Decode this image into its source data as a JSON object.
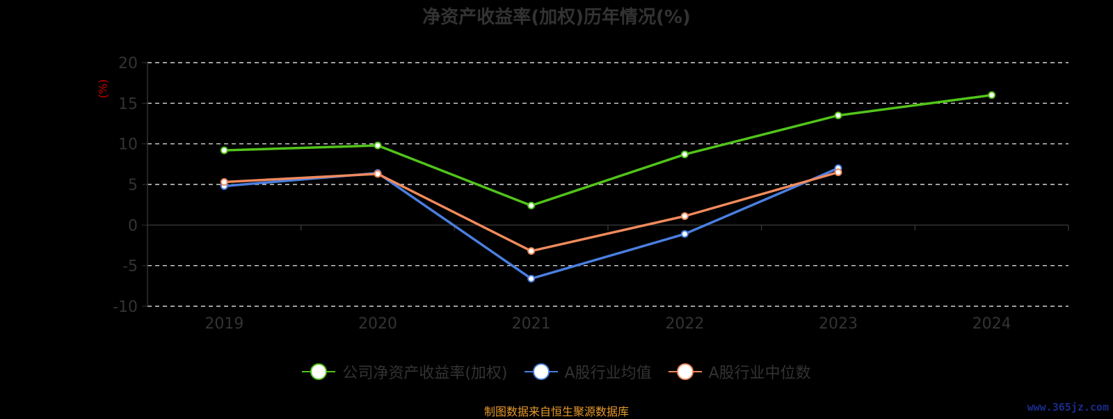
{
  "chart_data": {
    "type": "line",
    "title": "净资产收益率(加权)历年情况(%)",
    "ylabel": "(%)",
    "xlabel": "",
    "categories": [
      "2019",
      "2020",
      "2021",
      "2022",
      "2023",
      "2024"
    ],
    "ylim": [
      -10,
      20
    ],
    "yticks": [
      20,
      15,
      10,
      5,
      0,
      -5,
      -10
    ],
    "grid": true,
    "legend_position": "bottom",
    "series": [
      {
        "name": "公司净资产收益率(加权)",
        "color": "#52c41a",
        "values": [
          9.2,
          9.8,
          2.4,
          8.7,
          13.5,
          16.0
        ]
      },
      {
        "name": "A股行业均值",
        "color": "#4a7fe0",
        "values": [
          4.8,
          6.4,
          -6.6,
          -1.1,
          7.0,
          null
        ]
      },
      {
        "name": "A股行业中位数",
        "color": "#f08a5d",
        "values": [
          5.3,
          6.3,
          -3.2,
          1.1,
          6.5,
          null
        ]
      }
    ]
  },
  "footer": {
    "source_note": "制图数据来自恒生聚源数据库",
    "watermark": "www.365jz.com"
  },
  "legend_items": [
    {
      "label": "公司净资产收益率(加权)"
    },
    {
      "label": "A股行业均值"
    },
    {
      "label": "A股行业中位数"
    }
  ]
}
